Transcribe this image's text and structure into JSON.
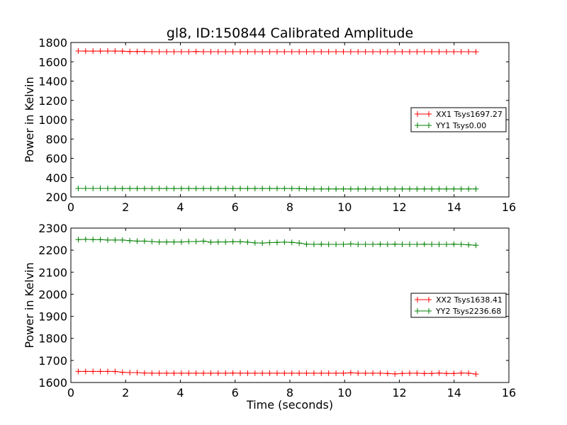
{
  "chart_data": [
    {
      "type": "line",
      "title": "gl8, ID:150844 Calibrated Amplitude",
      "xlabel": "",
      "ylabel": "Power in Kelvin",
      "xlim": [
        0,
        16
      ],
      "ylim": [
        200,
        1800
      ],
      "xticks": [
        "0",
        "2",
        "4",
        "6",
        "8",
        "10",
        "12",
        "14",
        "16"
      ],
      "yticks": [
        "200",
        "400",
        "600",
        "800",
        "1000",
        "1200",
        "1400",
        "1600",
        "1800"
      ],
      "legend_position": "center-right",
      "x_start": 0.27,
      "x_step": 0.269,
      "series": [
        {
          "name": "XX1 Tsys1697.27",
          "color": "#ff0000",
          "values": [
            1712,
            1711,
            1711,
            1711,
            1712,
            1711,
            1710,
            1706,
            1706,
            1706,
            1705,
            1705,
            1705,
            1705,
            1705,
            1705,
            1706,
            1705,
            1705,
            1705,
            1705,
            1705,
            1705,
            1705,
            1705,
            1705,
            1705,
            1705,
            1705,
            1705,
            1705,
            1705,
            1705,
            1705,
            1705,
            1705,
            1705,
            1705,
            1705,
            1705,
            1705,
            1705,
            1705,
            1705,
            1705,
            1705,
            1705,
            1705,
            1705,
            1705,
            1705,
            1705,
            1705,
            1705,
            1704
          ]
        },
        {
          "name": "YY1 Tsys0.00",
          "color": "#008000",
          "values": [
            288,
            288,
            288,
            288,
            288,
            287,
            287,
            287,
            287,
            287,
            287,
            287,
            287,
            287,
            287,
            287,
            287,
            287,
            287,
            287,
            287,
            287,
            287,
            287,
            287,
            287,
            287,
            287,
            287,
            287,
            286,
            283,
            283,
            283,
            283,
            283,
            283,
            283,
            283,
            283,
            283,
            283,
            283,
            283,
            283,
            283,
            283,
            283,
            283,
            283,
            283,
            283,
            283,
            283,
            283
          ]
        }
      ]
    },
    {
      "type": "line",
      "title": "",
      "xlabel": "Time (seconds)",
      "ylabel": "Power in Kelvin",
      "xlim": [
        0,
        16
      ],
      "ylim": [
        1600,
        2300
      ],
      "xticks": [
        "0",
        "2",
        "4",
        "6",
        "8",
        "10",
        "12",
        "14",
        "16"
      ],
      "yticks": [
        "1600",
        "1700",
        "1800",
        "1900",
        "2000",
        "2100",
        "2200",
        "2300"
      ],
      "legend_position": "center-right",
      "x_start": 0.27,
      "x_step": 0.269,
      "series": [
        {
          "name": "XX2 Tsys1638.41",
          "color": "#ff0000",
          "values": [
            1650,
            1650,
            1650,
            1650,
            1650,
            1650,
            1646,
            1645,
            1645,
            1643,
            1642,
            1642,
            1642,
            1642,
            1642,
            1642,
            1642,
            1642,
            1642,
            1642,
            1642,
            1643,
            1642,
            1642,
            1642,
            1642,
            1642,
            1642,
            1642,
            1642,
            1642,
            1642,
            1642,
            1642,
            1642,
            1642,
            1642,
            1644,
            1642,
            1642,
            1642,
            1642,
            1641,
            1639,
            1641,
            1642,
            1642,
            1641,
            1641,
            1643,
            1641,
            1641,
            1643,
            1642,
            1638
          ]
        },
        {
          "name": "YY2 Tsys2236.68",
          "color": "#008000",
          "values": [
            2248,
            2249,
            2248,
            2248,
            2246,
            2246,
            2246,
            2243,
            2241,
            2241,
            2239,
            2237,
            2237,
            2237,
            2237,
            2239,
            2239,
            2241,
            2236,
            2237,
            2237,
            2238,
            2238,
            2236,
            2233,
            2232,
            2234,
            2235,
            2236,
            2235,
            2232,
            2227,
            2226,
            2227,
            2226,
            2226,
            2226,
            2228,
            2226,
            2226,
            2226,
            2227,
            2226,
            2227,
            2226,
            2226,
            2226,
            2227,
            2226,
            2226,
            2226,
            2227,
            2226,
            2224,
            2222
          ]
        }
      ]
    }
  ]
}
